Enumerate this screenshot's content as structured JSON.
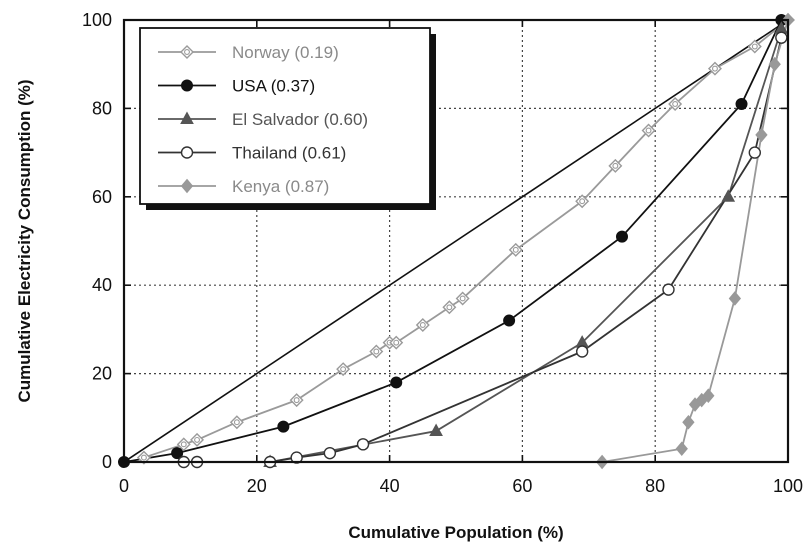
{
  "chart_data": {
    "type": "line",
    "xlabel": "Cumulative Population (%)",
    "ylabel": "Cumulative Electricity Consumption (%)",
    "xlim": [
      0,
      100
    ],
    "ylim": [
      0,
      100
    ],
    "xticks": [
      "0",
      "20",
      "40",
      "60",
      "80",
      "100"
    ],
    "yticks": [
      "0",
      "20",
      "40",
      "60",
      "80",
      "100"
    ],
    "grid": "dotted",
    "legend_position": "top-left",
    "equality_line": {
      "x": [
        0,
        100
      ],
      "y": [
        0,
        100
      ],
      "color": "#111111"
    },
    "series": [
      {
        "name": "Norway (0.19)",
        "color": "#9a9a9a",
        "marker": "open-diamond-circle",
        "x": [
          3,
          9,
          11,
          17,
          26,
          33,
          38,
          40,
          41,
          45,
          49,
          51,
          59,
          69,
          74,
          79,
          83,
          89,
          95,
          100
        ],
        "y": [
          1,
          4,
          5,
          9,
          14,
          21,
          25,
          27,
          27,
          31,
          35,
          37,
          48,
          59,
          67,
          75,
          81,
          89,
          94,
          100
        ]
      },
      {
        "name": "USA (0.37)",
        "color": "#111111",
        "marker": "filled-circle",
        "x": [
          0,
          8,
          24,
          41,
          58,
          75,
          93,
          99
        ],
        "y": [
          0,
          2,
          8,
          18,
          32,
          51,
          81,
          100
        ]
      },
      {
        "name": "El Salvador (0.60)",
        "color": "#555555",
        "marker": "filled-triangle",
        "x": [
          22,
          47,
          69,
          91,
          99
        ],
        "y": [
          0,
          7,
          27,
          60,
          98
        ]
      },
      {
        "name": "Thailand (0.61)",
        "color": "#333333",
        "marker": "open-circle",
        "x": [
          9,
          11,
          22,
          26,
          31,
          36,
          69,
          82,
          95,
          99
        ],
        "y": [
          0,
          0,
          0,
          1,
          2,
          4,
          25,
          39,
          70,
          96
        ]
      },
      {
        "name": "Kenya (0.87)",
        "color": "#999999",
        "marker": "filled-diamond",
        "x": [
          72,
          84,
          85,
          86,
          87,
          88,
          92,
          96,
          98,
          100
        ],
        "y": [
          0,
          3,
          9,
          13,
          14,
          15,
          37,
          74,
          90,
          100
        ]
      }
    ]
  }
}
